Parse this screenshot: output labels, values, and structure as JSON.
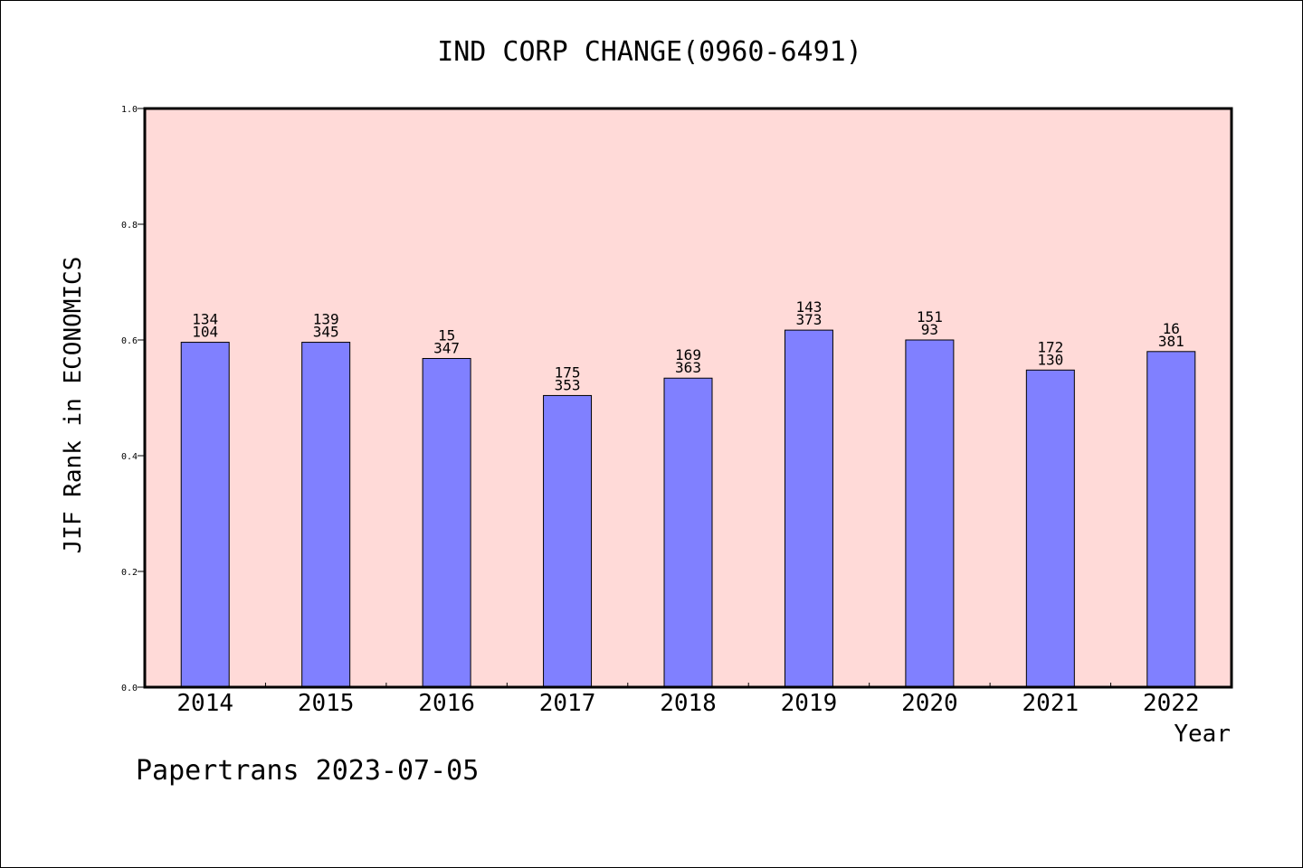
{
  "footer": "Papertrans 2023-07-05",
  "colors": {
    "plot_bg": "#ffdad8",
    "bar_fill": "#8080ff",
    "bar_stroke": "#000000"
  },
  "chart_data": {
    "type": "bar",
    "title": "IND CORP CHANGE(0960-6491)",
    "xlabel": "Year",
    "ylabel": "JIF Rank in ECONOMICS",
    "ylim": [
      0,
      1.0
    ],
    "yticks": [
      "0.0",
      "0.2",
      "0.4",
      "0.6",
      "0.8",
      "1.0"
    ],
    "grid": false,
    "legend": "none",
    "categories": [
      "2014",
      "2015",
      "2016",
      "2017",
      "2018",
      "2019",
      "2020",
      "2021",
      "2022"
    ],
    "values": [
      0.596,
      0.596,
      0.568,
      0.504,
      0.534,
      0.617,
      0.6,
      0.548,
      0.58
    ],
    "labels_top": [
      "134",
      "139",
      "15",
      "175",
      "169",
      "143",
      "151",
      "172",
      "16"
    ],
    "labels_bottom": [
      "104",
      "345",
      "347",
      "353",
      "363",
      "373",
      "93",
      "130",
      "381"
    ]
  }
}
